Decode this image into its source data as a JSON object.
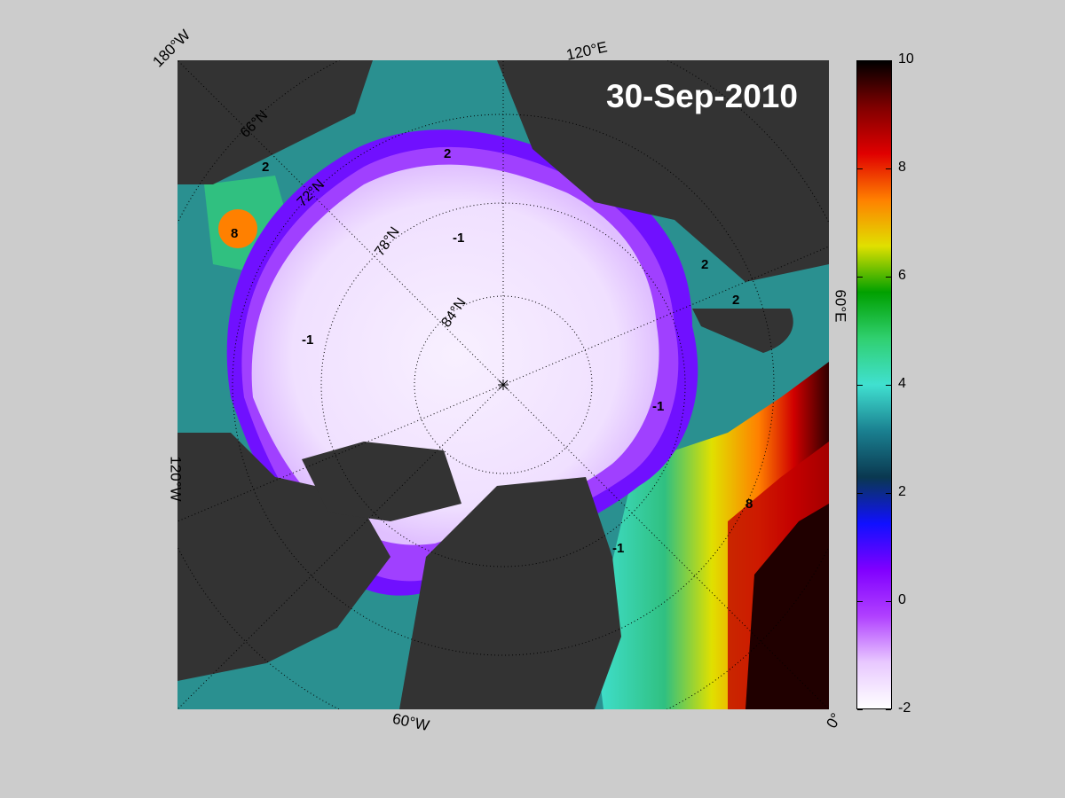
{
  "date": "30-Sep-2010",
  "lon_labels": {
    "top_left": "180°W",
    "top_right": "120°E",
    "right": "60°E",
    "bottom_right": "0°",
    "bottom": "60°W",
    "left": "120°W"
  },
  "lat_labels": [
    "66°N",
    "72°N",
    "78°N",
    "84°N"
  ],
  "contour_labels": [
    "2",
    "-1",
    "8"
  ],
  "colorbar": {
    "ticks": [
      "10",
      "8",
      "6",
      "4",
      "2",
      "0",
      "-2"
    ],
    "min": -2,
    "max": 10,
    "colors": [
      "#ffffff",
      "#e8c8ff",
      "#b040ff",
      "#8000ff",
      "#1010ff",
      "#0a3850",
      "#1a8090",
      "#40e0d0",
      "#30d070",
      "#00a000",
      "#e0e000",
      "#ff8000",
      "#e00000",
      "#800000",
      "#000000"
    ]
  },
  "colors": {
    "background": "#cccccc",
    "land": "#333333",
    "nodata": "#808080"
  }
}
